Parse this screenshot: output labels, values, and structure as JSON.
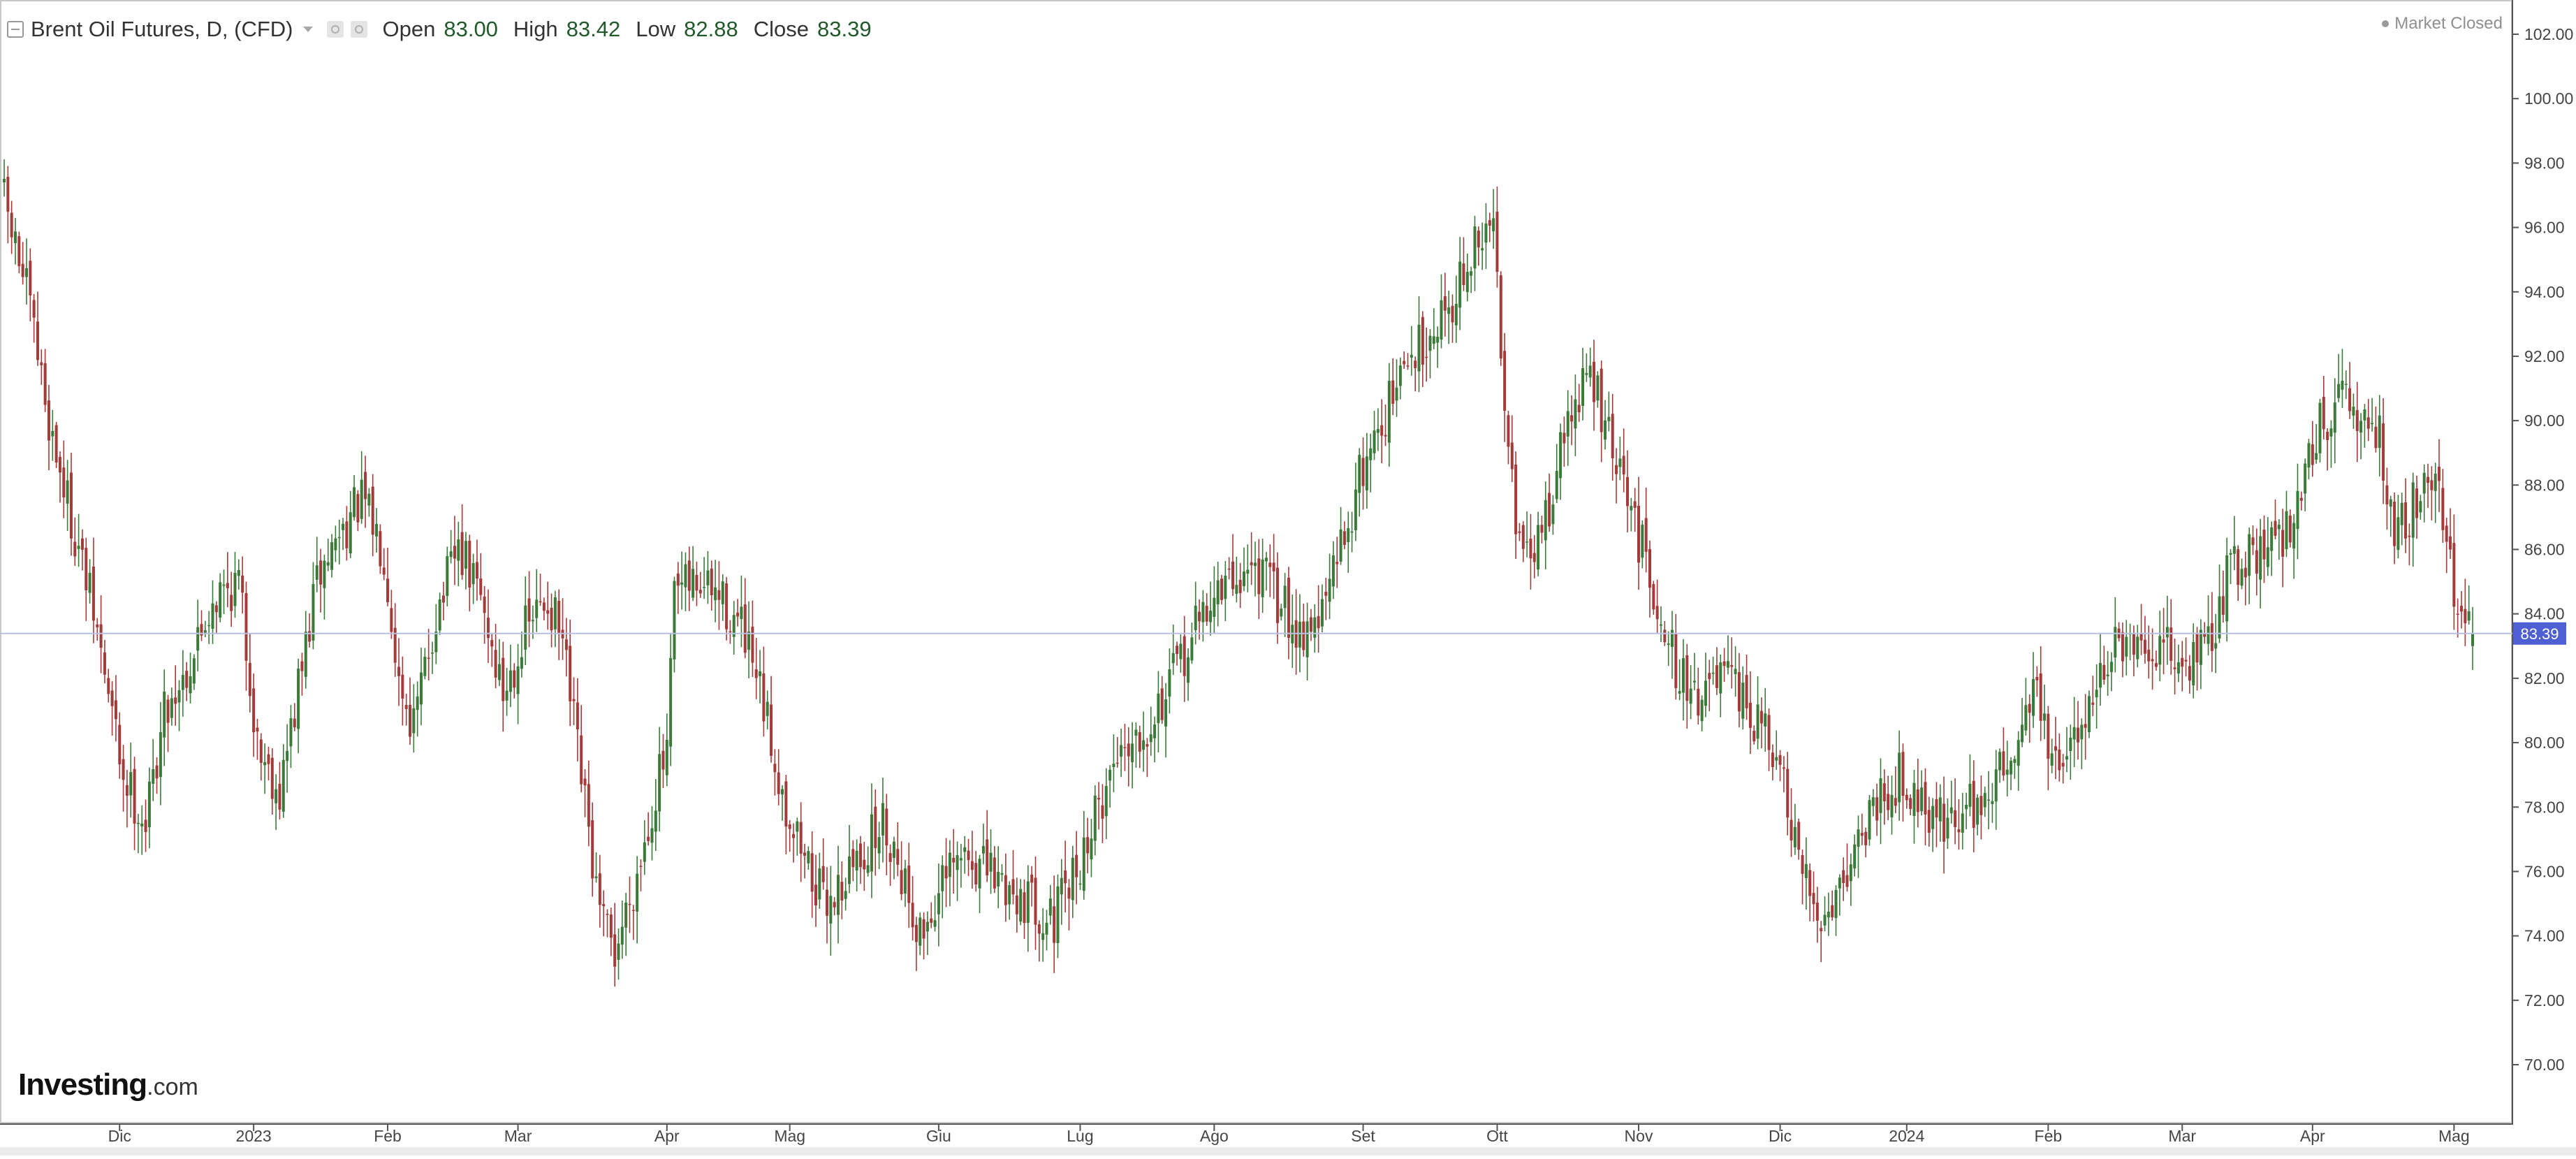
{
  "header": {
    "title": "Brent Oil Futures, D, (CFD)",
    "open_label": "Open",
    "open_value": "83.00",
    "high_label": "High",
    "high_value": "83.42",
    "low_label": "Low",
    "low_value": "82.88",
    "close_label": "Close",
    "close_value": "83.39"
  },
  "status": {
    "label": "Market Closed"
  },
  "logo": {
    "brand": "Investing",
    "domain": ".com"
  },
  "colors": {
    "up": "#3c7a3a",
    "down": "#a33b3b",
    "price_line": "#b8bfe3",
    "price_label_bg": "#4d5fd2",
    "axis": "#555555"
  },
  "chart_data": {
    "type": "candlestick",
    "title": "Brent Oil Futures, D, (CFD)",
    "xlabel": "",
    "ylabel": "",
    "ylim": [
      69.0,
      102.5
    ],
    "y_ticks": [
      "70.00",
      "72.00",
      "74.00",
      "76.00",
      "78.00",
      "80.00",
      "82.00",
      "84.00",
      "86.00",
      "88.00",
      "90.00",
      "92.00",
      "94.00",
      "96.00",
      "98.00",
      "100.00",
      "102.00"
    ],
    "x_ticks": [
      {
        "label": "Dic",
        "index": 31
      },
      {
        "label": "2023",
        "index": 67
      },
      {
        "label": "Feb",
        "index": 103
      },
      {
        "label": "Mar",
        "index": 138
      },
      {
        "label": "Apr",
        "index": 178
      },
      {
        "label": "Mag",
        "index": 211
      },
      {
        "label": "Giu",
        "index": 251
      },
      {
        "label": "Lug",
        "index": 289
      },
      {
        "label": "Ago",
        "index": 325
      },
      {
        "label": "Set",
        "index": 365
      },
      {
        "label": "Ott",
        "index": 401
      },
      {
        "label": "Nov",
        "index": 439
      },
      {
        "label": "Dic",
        "index": 477
      },
      {
        "label": "2024",
        "index": 511
      },
      {
        "label": "Feb",
        "index": 549
      },
      {
        "label": "Mar",
        "index": 585
      },
      {
        "label": "Apr",
        "index": 620
      },
      {
        "label": "Mag",
        "index": 658
      }
    ],
    "current_price": 83.39,
    "candle_count": 664,
    "close_path": [
      {
        "i": 0,
        "c": 96.8
      },
      {
        "i": 6,
        "c": 94.0
      },
      {
        "i": 12,
        "c": 90.0
      },
      {
        "i": 18,
        "c": 87.0
      },
      {
        "i": 24,
        "c": 84.0
      },
      {
        "i": 28,
        "c": 81.5
      },
      {
        "i": 32,
        "c": 79.0
      },
      {
        "i": 38,
        "c": 77.5
      },
      {
        "i": 43,
        "c": 81.0
      },
      {
        "i": 50,
        "c": 82.5
      },
      {
        "i": 56,
        "c": 84.5
      },
      {
        "i": 63,
        "c": 85.0
      },
      {
        "i": 68,
        "c": 80.0
      },
      {
        "i": 74,
        "c": 78.5
      },
      {
        "i": 78,
        "c": 81.0
      },
      {
        "i": 84,
        "c": 85.0
      },
      {
        "i": 90,
        "c": 86.5
      },
      {
        "i": 96,
        "c": 87.5
      },
      {
        "i": 102,
        "c": 86.0
      },
      {
        "i": 106,
        "c": 82.0
      },
      {
        "i": 110,
        "c": 80.5
      },
      {
        "i": 116,
        "c": 84.0
      },
      {
        "i": 122,
        "c": 86.0
      },
      {
        "i": 128,
        "c": 84.5
      },
      {
        "i": 134,
        "c": 81.5
      },
      {
        "i": 140,
        "c": 83.5
      },
      {
        "i": 146,
        "c": 84.5
      },
      {
        "i": 150,
        "c": 83.0
      },
      {
        "i": 156,
        "c": 78.0
      },
      {
        "i": 160,
        "c": 74.5
      },
      {
        "i": 164,
        "c": 73.5
      },
      {
        "i": 170,
        "c": 76.0
      },
      {
        "i": 176,
        "c": 79.0
      },
      {
        "i": 178,
        "c": 79.5
      },
      {
        "i": 180,
        "c": 84.5
      },
      {
        "i": 186,
        "c": 85.0
      },
      {
        "i": 192,
        "c": 84.5
      },
      {
        "i": 198,
        "c": 83.5
      },
      {
        "i": 204,
        "c": 81.0
      },
      {
        "i": 210,
        "c": 78.0
      },
      {
        "i": 215,
        "c": 76.5
      },
      {
        "i": 220,
        "c": 75.0
      },
      {
        "i": 224,
        "c": 75.5
      },
      {
        "i": 230,
        "c": 76.5
      },
      {
        "i": 236,
        "c": 77.5
      },
      {
        "i": 240,
        "c": 76.5
      },
      {
        "i": 246,
        "c": 74.0
      },
      {
        "i": 252,
        "c": 75.5
      },
      {
        "i": 258,
        "c": 76.5
      },
      {
        "i": 264,
        "c": 76.0
      },
      {
        "i": 270,
        "c": 75.5
      },
      {
        "i": 276,
        "c": 75.0
      },
      {
        "i": 282,
        "c": 74.5
      },
      {
        "i": 288,
        "c": 76.0
      },
      {
        "i": 294,
        "c": 78.0
      },
      {
        "i": 300,
        "c": 80.0
      },
      {
        "i": 306,
        "c": 80.5
      },
      {
        "i": 312,
        "c": 81.5
      },
      {
        "i": 318,
        "c": 83.0
      },
      {
        "i": 324,
        "c": 84.5
      },
      {
        "i": 330,
        "c": 85.0
      },
      {
        "i": 336,
        "c": 85.5
      },
      {
        "i": 342,
        "c": 84.5
      },
      {
        "i": 348,
        "c": 83.5
      },
      {
        "i": 354,
        "c": 84.0
      },
      {
        "i": 360,
        "c": 86.5
      },
      {
        "i": 366,
        "c": 89.0
      },
      {
        "i": 372,
        "c": 90.5
      },
      {
        "i": 378,
        "c": 92.0
      },
      {
        "i": 384,
        "c": 93.0
      },
      {
        "i": 390,
        "c": 94.0
      },
      {
        "i": 396,
        "c": 95.5
      },
      {
        "i": 400,
        "c": 96.0
      },
      {
        "i": 403,
        "c": 91.0
      },
      {
        "i": 407,
        "c": 86.0
      },
      {
        "i": 410,
        "c": 85.5
      },
      {
        "i": 415,
        "c": 87.5
      },
      {
        "i": 420,
        "c": 90.0
      },
      {
        "i": 426,
        "c": 91.5
      },
      {
        "i": 432,
        "c": 89.0
      },
      {
        "i": 436,
        "c": 87.5
      },
      {
        "i": 440,
        "c": 86.0
      },
      {
        "i": 444,
        "c": 84.5
      },
      {
        "i": 450,
        "c": 82.0
      },
      {
        "i": 456,
        "c": 81.5
      },
      {
        "i": 462,
        "c": 82.0
      },
      {
        "i": 468,
        "c": 81.0
      },
      {
        "i": 474,
        "c": 80.0
      },
      {
        "i": 478,
        "c": 78.5
      },
      {
        "i": 482,
        "c": 76.0
      },
      {
        "i": 488,
        "c": 74.5
      },
      {
        "i": 492,
        "c": 75.5
      },
      {
        "i": 498,
        "c": 77.0
      },
      {
        "i": 504,
        "c": 78.5
      },
      {
        "i": 510,
        "c": 79.0
      },
      {
        "i": 516,
        "c": 78.0
      },
      {
        "i": 522,
        "c": 77.5
      },
      {
        "i": 528,
        "c": 78.0
      },
      {
        "i": 534,
        "c": 78.5
      },
      {
        "i": 540,
        "c": 80.0
      },
      {
        "i": 546,
        "c": 82.0
      },
      {
        "i": 550,
        "c": 79.0
      },
      {
        "i": 556,
        "c": 80.0
      },
      {
        "i": 562,
        "c": 82.0
      },
      {
        "i": 568,
        "c": 83.0
      },
      {
        "i": 574,
        "c": 82.5
      },
      {
        "i": 580,
        "c": 83.0
      },
      {
        "i": 586,
        "c": 82.5
      },
      {
        "i": 592,
        "c": 83.0
      },
      {
        "i": 598,
        "c": 85.5
      },
      {
        "i": 604,
        "c": 86.0
      },
      {
        "i": 610,
        "c": 86.0
      },
      {
        "i": 616,
        "c": 87.5
      },
      {
        "i": 622,
        "c": 90.0
      },
      {
        "i": 628,
        "c": 90.5
      },
      {
        "i": 634,
        "c": 90.0
      },
      {
        "i": 638,
        "c": 89.5
      },
      {
        "i": 642,
        "c": 86.5
      },
      {
        "i": 646,
        "c": 87.0
      },
      {
        "i": 650,
        "c": 88.5
      },
      {
        "i": 654,
        "c": 88.0
      },
      {
        "i": 657,
        "c": 85.5
      },
      {
        "i": 660,
        "c": 83.5
      },
      {
        "i": 663,
        "c": 83.39
      }
    ]
  }
}
